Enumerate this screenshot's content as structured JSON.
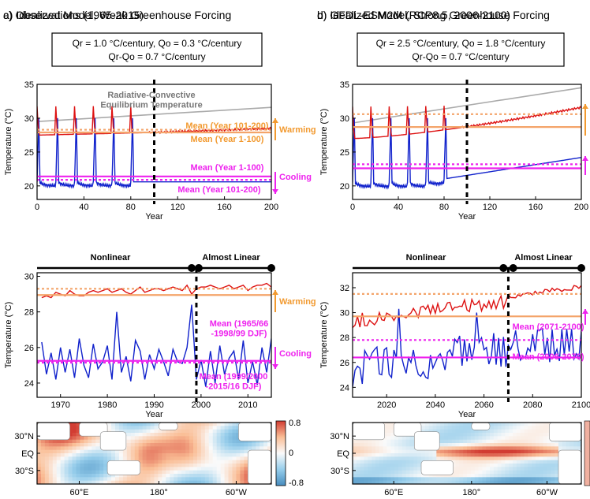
{
  "chart_data": [
    {
      "id": "a",
      "type": "line",
      "title": "a) Idealized Model, Weak Greenhouse Forcing",
      "box": [
        "Qr = 1.0 °C/century, Qo = 0.3 °C/century",
        "Qr-Qo = 0.7 °C/century"
      ],
      "xlabel": "Year",
      "ylabel": "Temperature (°C)",
      "xlim": [
        0,
        200
      ],
      "ylim": [
        18,
        35
      ],
      "xticks": [
        0,
        40,
        80,
        120,
        160,
        200
      ],
      "yticks": [
        20,
        25,
        30,
        35
      ],
      "divider_x": 100,
      "rce": {
        "label": "Radiative-Convective\nEquilibrium Temperature",
        "start": 29.5,
        "end": 31.6,
        "color": "#aaaaaa"
      },
      "warm": {
        "base": 27.5,
        "slope_early": 0.002,
        "slope_late": 0.005,
        "color": "#dd1111"
      },
      "cold": {
        "base": 20.6,
        "color": "#1122cc",
        "osc_period": 16,
        "osc_until": 80,
        "peak": 30.0
      },
      "means": [
        {
          "label": "Mean (Year 101-200)",
          "value": 28.3,
          "color": "#f4a46a",
          "dashed": true
        },
        {
          "label": "Mean (Year 1-100)",
          "value": 27.9,
          "color": "#f4a46a",
          "dashed": false
        },
        {
          "label": "Mean (Year 1-100)",
          "value": 21.4,
          "color": "#ee22ee",
          "dashed": false
        },
        {
          "label": "Mean (Year 101-200)",
          "value": 20.9,
          "color": "#ee22ee",
          "dashed": true
        }
      ],
      "arrows": [
        {
          "label": "Warming",
          "color": "#f29a30"
        },
        {
          "label": "Cooling",
          "color": "#ee22ee"
        }
      ]
    },
    {
      "id": "b",
      "type": "line",
      "title": "b) Idealized Model, Strong Greenhouse Forcing",
      "box": [
        "Qr = 2.5 °C/century, Qo = 1.8 °C/century",
        "Qr-Qo = 0.7 °C/century"
      ],
      "xlabel": "Year",
      "ylabel": "Temperature (°C)",
      "xlim": [
        0,
        200
      ],
      "ylim": [
        18,
        35
      ],
      "xticks": [
        0,
        40,
        80,
        120,
        160,
        200
      ],
      "yticks": [
        20,
        25,
        30,
        35
      ],
      "divider_x": 100,
      "rce": {
        "start": 29.3,
        "end": 34.5,
        "color": "#aaaaaa"
      },
      "warm": {
        "base": 27.0,
        "end": 31.6,
        "color": "#dd1111"
      },
      "cold": {
        "base": 20.5,
        "end": 24.2,
        "color": "#1122cc",
        "osc_period": 16,
        "osc_until": 80,
        "peak": 30.0
      },
      "means": [
        {
          "value": 30.6,
          "color": "#f4a46a",
          "dashed": true
        },
        {
          "value": 28.7,
          "color": "#f4a46a",
          "dashed": false
        },
        {
          "value": 23.2,
          "color": "#ee22ee",
          "dashed": true
        },
        {
          "value": 22.6,
          "color": "#ee22ee",
          "dashed": false
        }
      ]
    },
    {
      "id": "c",
      "type": "line",
      "title": "c) Observations (1965-2015)",
      "xlabel": "Year",
      "ylabel": "Temperature (°C)",
      "xlim": [
        1965,
        2015
      ],
      "ylim": [
        23.2,
        30.2
      ],
      "xticks": [
        1970,
        1980,
        1990,
        2000,
        2010
      ],
      "yticks": [
        24,
        26,
        28,
        30
      ],
      "divider_x": 1999,
      "regime": {
        "left": "Nonlinear",
        "right": "Almost Linear",
        "dots": [
          1998,
          1999.5,
          2015
        ]
      },
      "warm_series": {
        "color": "#dd1111",
        "x": [
          1966,
          1967,
          1968,
          1969,
          1970,
          1971,
          1972,
          1973,
          1974,
          1975,
          1976,
          1977,
          1978,
          1979,
          1980,
          1981,
          1982,
          1983,
          1984,
          1985,
          1986,
          1987,
          1988,
          1989,
          1990,
          1991,
          1992,
          1993,
          1994,
          1995,
          1996,
          1997,
          1998,
          1999,
          2000,
          2001,
          2002,
          2003,
          2004,
          2005,
          2006,
          2007,
          2008,
          2009,
          2010,
          2011,
          2012,
          2013,
          2014,
          2015
        ],
        "y": [
          28.8,
          28.9,
          28.8,
          29.1,
          29.0,
          28.9,
          29.2,
          29.0,
          28.9,
          28.9,
          29.1,
          29.2,
          29.1,
          29.2,
          29.3,
          29.1,
          29.2,
          29.3,
          29.1,
          29.0,
          29.2,
          29.4,
          29.1,
          29.2,
          29.3,
          29.3,
          29.2,
          29.3,
          29.4,
          29.3,
          29.2,
          29.5,
          29.0,
          29.3,
          29.4,
          29.4,
          29.5,
          29.4,
          29.3,
          29.4,
          29.5,
          29.3,
          29.4,
          29.5,
          29.2,
          29.4,
          29.5,
          29.5,
          29.6,
          29.4
        ]
      },
      "cold_series": {
        "color": "#1122cc",
        "x": [
          1966,
          1967,
          1968,
          1969,
          1970,
          1971,
          1972,
          1973,
          1974,
          1975,
          1976,
          1977,
          1978,
          1979,
          1980,
          1981,
          1982,
          1983,
          1984,
          1985,
          1986,
          1987,
          1988,
          1989,
          1990,
          1991,
          1992,
          1993,
          1994,
          1995,
          1996,
          1997,
          1998,
          1999,
          2000,
          2001,
          2002,
          2003,
          2004,
          2005,
          2006,
          2007,
          2008,
          2009,
          2010,
          2011,
          2012,
          2013,
          2014,
          2015
        ],
        "y": [
          26.3,
          24.5,
          25.7,
          24.2,
          26.0,
          24.6,
          25.9,
          24.3,
          26.5,
          25.0,
          24.3,
          26.2,
          24.8,
          25.2,
          26.1,
          24.2,
          28.0,
          24.6,
          25.5,
          24.1,
          26.4,
          25.8,
          24.2,
          25.6,
          24.8,
          25.9,
          25.2,
          24.4,
          25.9,
          25.2,
          25.1,
          26.0,
          28.4,
          24.2,
          25.3,
          23.8,
          25.8,
          24.0,
          26.1,
          24.5,
          25.4,
          25.8,
          24.2,
          26.4,
          24.0,
          25.2,
          23.9,
          26.0,
          24.6,
          26.5
        ]
      },
      "means": [
        {
          "value": 29.3,
          "color": "#f4a46a",
          "dashed": true
        },
        {
          "value": 28.95,
          "color": "#f4a46a",
          "dashed": false
        },
        {
          "label": "Mean (1965/66\n-1998/99 DJF)",
          "value": 25.25,
          "color": "#ee22ee",
          "dashed": false
        },
        {
          "label": "Mean (1999/2000\n-2015/16 DJF)",
          "value": 25.15,
          "color": "#ee22ee",
          "dashed": true
        }
      ],
      "arrows": [
        {
          "label": "Warming",
          "color": "#f29a30"
        },
        {
          "label": "Cooling",
          "color": "#ee22ee"
        }
      ]
    },
    {
      "id": "d",
      "type": "line",
      "title": "d) GFDL-ESM2M (RCP8.5, 2006-2100)",
      "xlabel": "Year",
      "ylabel": "Temperature (°C)",
      "xlim": [
        2006,
        2100
      ],
      "ylim": [
        23.2,
        33.2
      ],
      "xticks": [
        2020,
        2040,
        2060,
        2080,
        2100
      ],
      "yticks": [
        24,
        26,
        28,
        30,
        32
      ],
      "divider_x": 2070,
      "regime": {
        "left": "Nonlinear",
        "right": "Almost Linear",
        "dots": [
          2068,
          2072,
          2100
        ]
      },
      "warm": {
        "start": 29.3,
        "end": 31.8,
        "color": "#dd1111"
      },
      "cold": {
        "start": 25.6,
        "end": 27.7,
        "color": "#1122cc"
      },
      "means": [
        {
          "value": 31.5,
          "color": "#f4a46a",
          "dashed": true
        },
        {
          "value": 29.7,
          "color": "#f4a46a",
          "dashed": false
        },
        {
          "label": "Mean (2071-2100)",
          "value": 27.8,
          "color": "#ee22ee",
          "dashed": true
        },
        {
          "label": "Mean (2006-2070)",
          "value": 26.4,
          "color": "#ee22ee",
          "dashed": false
        }
      ]
    },
    {
      "id": "e",
      "type": "heatmap",
      "xticks": [
        "60°E",
        "180°",
        "60°W"
      ],
      "yticks": [
        "30°N",
        "EQ",
        "30°S"
      ],
      "colorbar": {
        "ticks": [
          "0.8",
          "0",
          "-0.8"
        ]
      }
    },
    {
      "id": "f",
      "type": "heatmap",
      "xticks": [
        "60°E",
        "180°",
        "60°W"
      ],
      "yticks": [
        "30°N",
        "EQ",
        "30°S"
      ]
    }
  ]
}
